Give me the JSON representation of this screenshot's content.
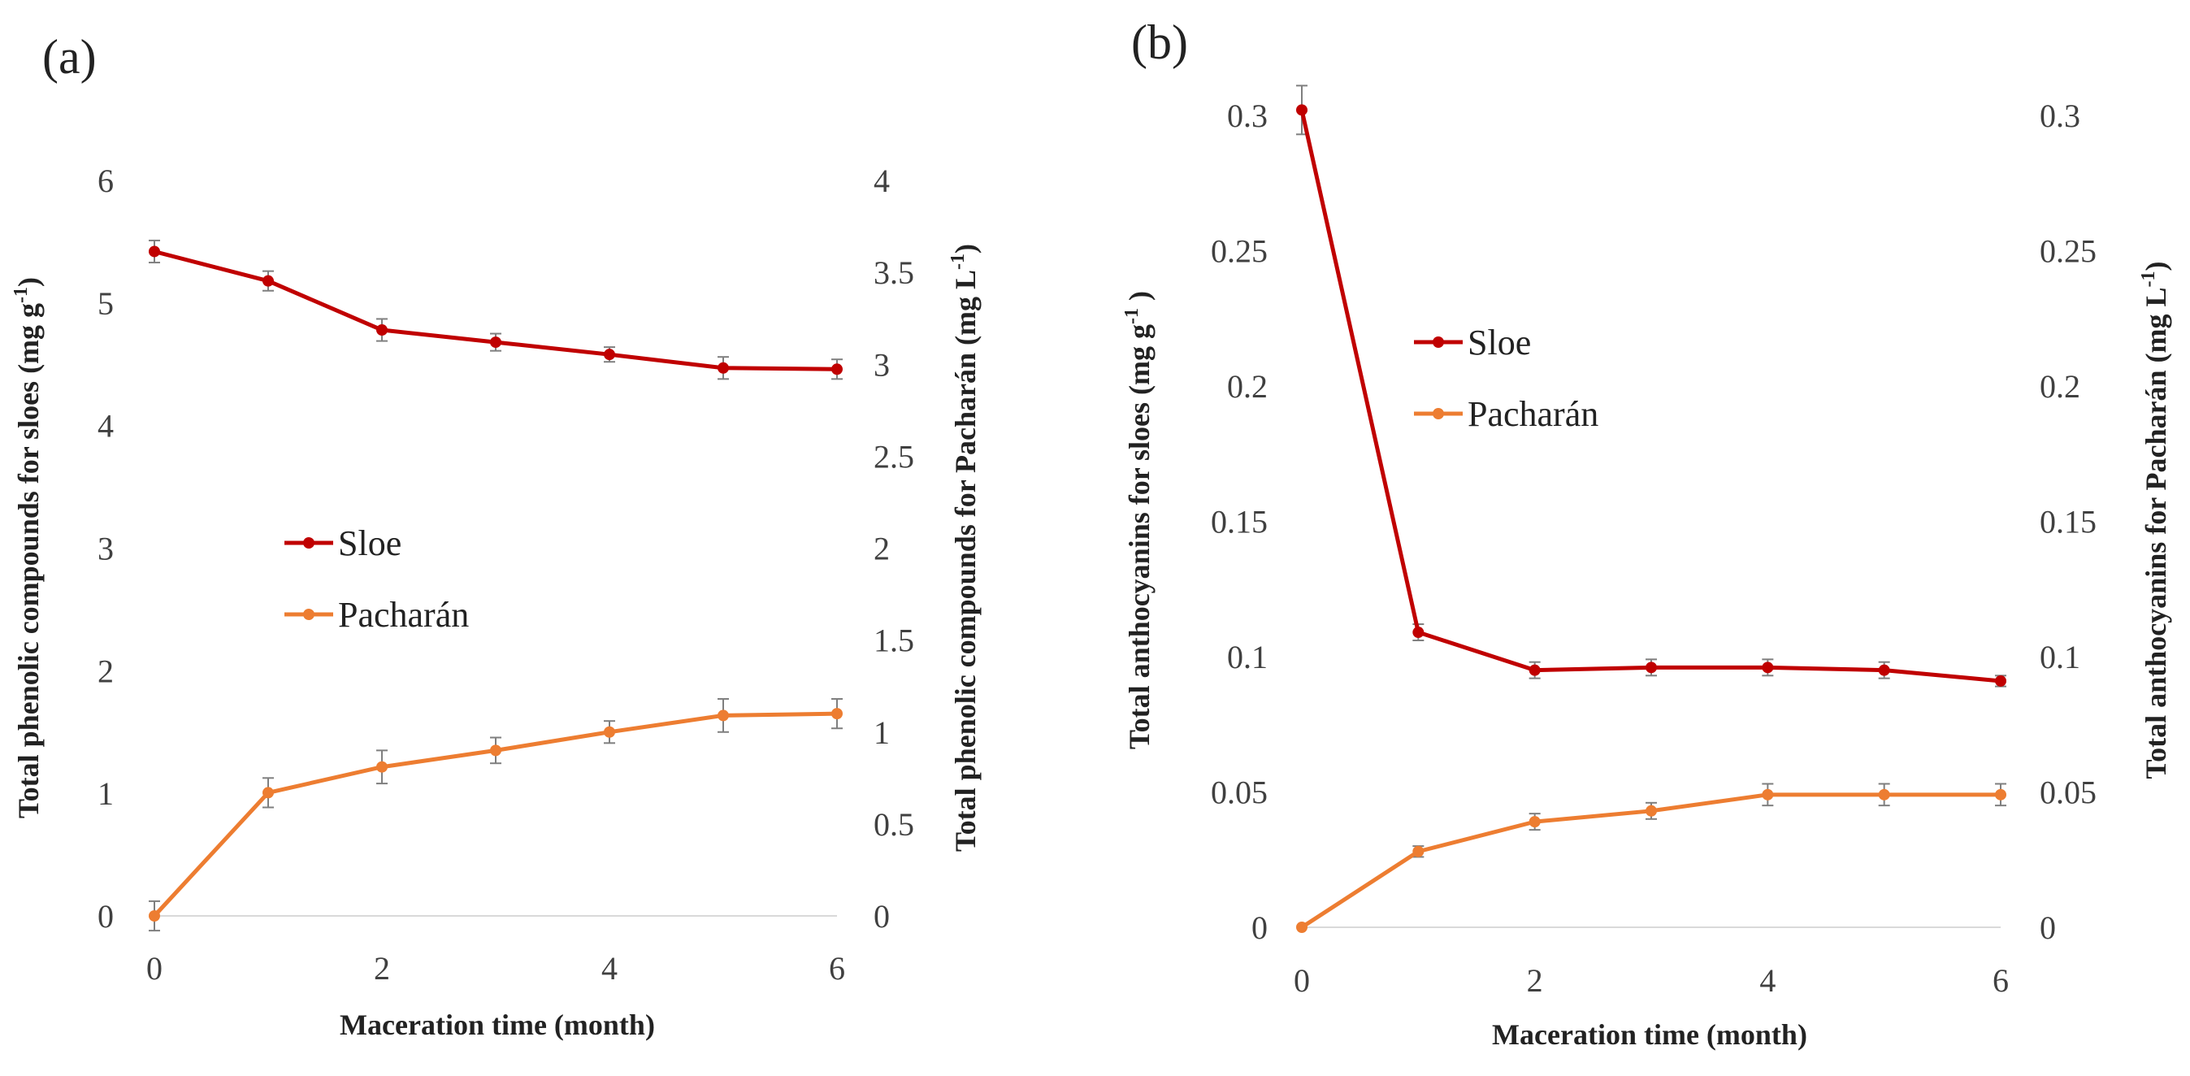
{
  "chart_data": [
    {
      "panel_label": "(a)",
      "type": "line",
      "x": [
        0,
        1,
        2,
        3,
        4,
        5,
        6
      ],
      "xticks": [
        "0",
        "2",
        "4",
        "6"
      ],
      "xtick_values": [
        0,
        2,
        4,
        6
      ],
      "xlim": [
        0,
        6
      ],
      "xlabel": "Maceration time (month)",
      "ylabel_left": "Total phenolic compounds for sloes (mg g",
      "ylabel_left_sup": "-1",
      "ylabel_left_close": ")",
      "ylabel_right": "Total phenolic compounds  for Pacharán (mg L",
      "ylabel_right_sup": "-1",
      "ylabel_right_close": ")",
      "ylim_left": [
        0,
        6
      ],
      "yticks_left": [
        "0",
        "1",
        "2",
        "3",
        "4",
        "5",
        "6"
      ],
      "ytick_values_left": [
        0,
        1,
        2,
        3,
        4,
        5,
        6
      ],
      "ylim_right": [
        0,
        4
      ],
      "yticks_right": [
        "0",
        "0.5",
        "1",
        "1.5",
        "2",
        "2.5",
        "3",
        "3.5",
        "4"
      ],
      "ytick_values_right": [
        0,
        0.5,
        1,
        1.5,
        2,
        2.5,
        3,
        3.5,
        4
      ],
      "legend_position": "center-left",
      "series": [
        {
          "name": "Sloe",
          "axis": "left",
          "color": "#c00000",
          "values": [
            5.42,
            5.18,
            4.78,
            4.68,
            4.58,
            4.47,
            4.46
          ],
          "errors": [
            0.09,
            0.08,
            0.09,
            0.07,
            0.06,
            0.09,
            0.08
          ]
        },
        {
          "name": "Pacharán",
          "axis": "right",
          "color": "#ed7d31",
          "values": [
            0.0,
            0.67,
            0.81,
            0.9,
            1.0,
            1.09,
            1.1
          ],
          "errors": [
            0.08,
            0.08,
            0.09,
            0.07,
            0.06,
            0.09,
            0.08
          ]
        }
      ]
    },
    {
      "panel_label": "(b)",
      "type": "line",
      "x": [
        0,
        1,
        2,
        3,
        4,
        5,
        6
      ],
      "xticks": [
        "0",
        "2",
        "4",
        "6"
      ],
      "xtick_values": [
        0,
        2,
        4,
        6
      ],
      "xlim": [
        0,
        6
      ],
      "xlabel": "Maceration time (month)",
      "ylabel_left": "Total anthocyanins for sloes (mg g",
      "ylabel_left_sup": "-1",
      "ylabel_left_close": " )",
      "ylabel_right": "Total anthocyanins for Pacharán (mg L",
      "ylabel_right_sup": "-1",
      "ylabel_right_close": ")",
      "ylim_left": [
        0,
        0.3
      ],
      "yticks_left": [
        "0",
        "0.05",
        "0.1",
        "0.15",
        "0.2",
        "0.25",
        "0.3"
      ],
      "ytick_values_left": [
        0,
        0.05,
        0.1,
        0.15,
        0.2,
        0.25,
        0.3
      ],
      "ylim_right": [
        0,
        0.3
      ],
      "yticks_right": [
        "0",
        "0.05",
        "0.1",
        "0.15",
        "0.2",
        "0.25",
        "0.3"
      ],
      "ytick_values_right": [
        0,
        0.05,
        0.1,
        0.15,
        0.2,
        0.25,
        0.3
      ],
      "legend_position": "top-center",
      "series": [
        {
          "name": "Sloe",
          "axis": "left",
          "color": "#c00000",
          "values": [
            0.302,
            0.109,
            0.095,
            0.096,
            0.096,
            0.095,
            0.091
          ],
          "errors": [
            0.009,
            0.003,
            0.003,
            0.003,
            0.003,
            0.003,
            0.002
          ]
        },
        {
          "name": "Pacharán",
          "axis": "right",
          "color": "#ed7d31",
          "values": [
            0.0,
            0.028,
            0.039,
            0.043,
            0.049,
            0.049,
            0.049
          ],
          "errors": [
            0.0,
            0.002,
            0.003,
            0.003,
            0.004,
            0.004,
            0.004
          ]
        }
      ]
    }
  ]
}
